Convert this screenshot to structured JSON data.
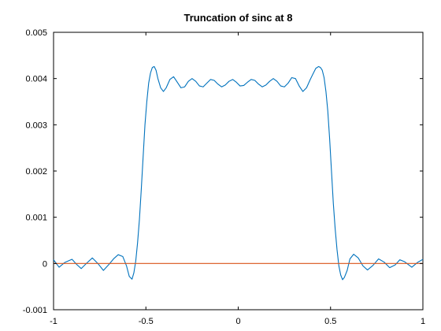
{
  "chart_data": {
    "type": "line",
    "title": "Truncation of sinc at 8",
    "xlabel": "",
    "ylabel": "",
    "xlim": [
      -1,
      1
    ],
    "ylim": [
      -0.001,
      0.005
    ],
    "x_ticks": [
      -1,
      -0.5,
      0,
      0.5,
      1
    ],
    "x_tick_labels": [
      "-1",
      "-0.5",
      "0",
      "0.5",
      "1"
    ],
    "y_ticks": [
      -0.001,
      0,
      0.001,
      0.002,
      0.003,
      0.004,
      0.005
    ],
    "y_tick_labels": [
      "-0.001",
      "0",
      "0.001",
      "0.002",
      "0.003",
      "0.004",
      "0.005"
    ],
    "grid": false,
    "legend": "none",
    "series": [
      {
        "color": "#0072bd",
        "x": [
          -1,
          -0.97,
          -0.94,
          -0.9,
          -0.875,
          -0.85,
          -0.82,
          -0.79,
          -0.76,
          -0.73,
          -0.7,
          -0.675,
          -0.65,
          -0.625,
          -0.605,
          -0.59,
          -0.575,
          -0.565,
          -0.555,
          -0.545,
          -0.535,
          -0.525,
          -0.515,
          -0.505,
          -0.495,
          -0.485,
          -0.475,
          -0.465,
          -0.455,
          -0.445,
          -0.435,
          -0.42,
          -0.405,
          -0.39,
          -0.37,
          -0.35,
          -0.33,
          -0.31,
          -0.29,
          -0.27,
          -0.25,
          -0.23,
          -0.21,
          -0.19,
          -0.17,
          -0.15,
          -0.13,
          -0.11,
          -0.09,
          -0.07,
          -0.05,
          -0.03,
          -0.01,
          0.01,
          0.03,
          0.05,
          0.07,
          0.09,
          0.11,
          0.13,
          0.15,
          0.17,
          0.19,
          0.21,
          0.23,
          0.25,
          0.27,
          0.29,
          0.31,
          0.33,
          0.35,
          0.37,
          0.39,
          0.405,
          0.42,
          0.435,
          0.445,
          0.455,
          0.465,
          0.475,
          0.485,
          0.495,
          0.505,
          0.515,
          0.525,
          0.535,
          0.545,
          0.555,
          0.565,
          0.575,
          0.59,
          0.605,
          0.625,
          0.65,
          0.675,
          0.7,
          0.73,
          0.76,
          0.79,
          0.82,
          0.85,
          0.875,
          0.9,
          0.94,
          0.97,
          1
        ],
        "y": [
          8e-05,
          -8e-05,
          2e-05,
          9e-05,
          -2e-05,
          -0.00011,
          1e-05,
          0.00012,
          -0.0,
          -0.00015,
          -2e-05,
          0.0001,
          0.00019,
          0.00015,
          -5e-05,
          -0.00028,
          -0.00034,
          -0.0002,
          5e-05,
          0.00045,
          0.00095,
          0.0016,
          0.0023,
          0.003,
          0.0035,
          0.0039,
          0.00412,
          0.00424,
          0.00426,
          0.00418,
          0.004,
          0.0038,
          0.00372,
          0.0038,
          0.00398,
          0.00404,
          0.00392,
          0.0038,
          0.00382,
          0.00394,
          0.004,
          0.00394,
          0.00384,
          0.00382,
          0.0039,
          0.00398,
          0.00396,
          0.00388,
          0.00382,
          0.00386,
          0.00394,
          0.00398,
          0.00392,
          0.00384,
          0.00385,
          0.00392,
          0.00398,
          0.00396,
          0.00388,
          0.00382,
          0.00386,
          0.00394,
          0.004,
          0.00394,
          0.00384,
          0.00382,
          0.0039,
          0.00402,
          0.004,
          0.00384,
          0.00372,
          0.0038,
          0.00398,
          0.0041,
          0.00422,
          0.00426,
          0.00424,
          0.00418,
          0.00402,
          0.00372,
          0.0033,
          0.0027,
          0.002,
          0.0013,
          0.00075,
          0.0003,
          -5e-05,
          -0.00025,
          -0.00035,
          -0.0003,
          -0.00015,
          0.0001,
          0.0002,
          0.00012,
          -5e-05,
          -0.00014,
          -4e-05,
          0.0001,
          3e-05,
          -9e-05,
          -3e-05,
          8e-05,
          4e-05,
          -8e-05,
          2e-05,
          9e-05
        ]
      },
      {
        "color": "#d95319",
        "x": [
          -1,
          1
        ],
        "y": [
          0,
          0
        ]
      }
    ]
  }
}
